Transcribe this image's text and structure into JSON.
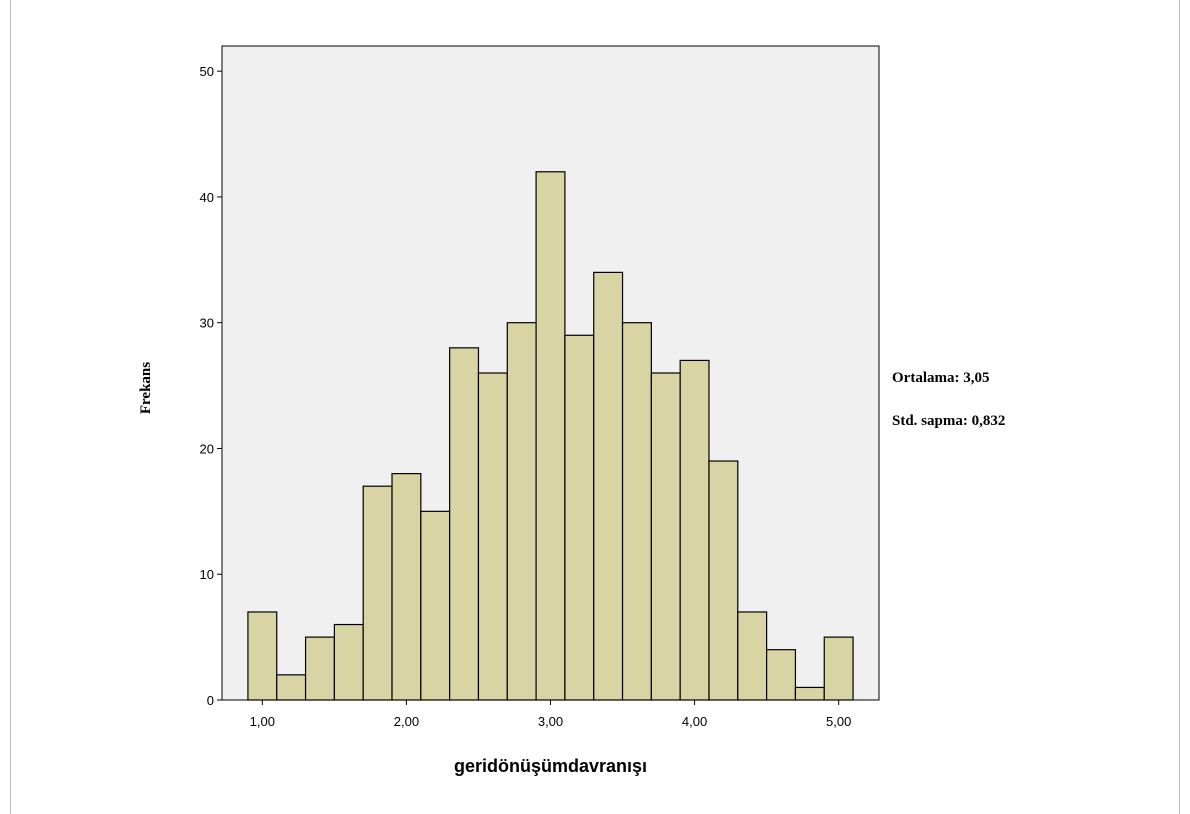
{
  "chart_data": {
    "type": "bar",
    "categories": [
      "0,90–1,10",
      "1,10–1,30",
      "1,30–1,50",
      "1,50–1,70",
      "1,70–1,90",
      "1,90–2,10",
      "2,10–2,30",
      "2,30–2,50",
      "2,50–2,70",
      "2,70–2,90",
      "2,90–3,10",
      "3,10–3,30",
      "3,30–3,50",
      "3,50–3,70",
      "3,70–3,90",
      "3,90–4,10",
      "4,10–4,30",
      "4,30–4,50",
      "4,50–4,70",
      "4,70–4,90",
      "4,90–5,10"
    ],
    "bin_edges": [
      0.9,
      1.1,
      1.3,
      1.5,
      1.7,
      1.9,
      2.1,
      2.3,
      2.5,
      2.7,
      2.9,
      3.1,
      3.3,
      3.5,
      3.7,
      3.9,
      4.1,
      4.3,
      4.5,
      4.7,
      4.9,
      5.1
    ],
    "values": [
      7,
      2,
      5,
      6,
      17,
      18,
      15,
      28,
      26,
      30,
      42,
      29,
      34,
      30,
      26,
      27,
      19,
      7,
      4,
      1,
      5
    ],
    "xlabel": "geridönüşümdavranışı",
    "ylabel": "Frekans",
    "xlim": [
      0.72,
      5.28
    ],
    "ylim": [
      0,
      52
    ],
    "x_ticks": [
      1,
      2,
      3,
      4,
      5
    ],
    "x_tick_labels": [
      "1,00",
      "2,00",
      "3,00",
      "4,00",
      "5,00"
    ],
    "y_ticks": [
      0,
      10,
      20,
      30,
      40,
      50
    ],
    "y_tick_labels": [
      "0",
      "10",
      "20",
      "30",
      "40",
      "50"
    ],
    "grid": false,
    "bar_color": "#d9d4a3",
    "bar_edge_color": "#000000",
    "plot_background": "#f0f0f0"
  },
  "stats": {
    "mean_label": "Ortalama: 3,05",
    "std_label": "Std. sapma:  0,832"
  }
}
